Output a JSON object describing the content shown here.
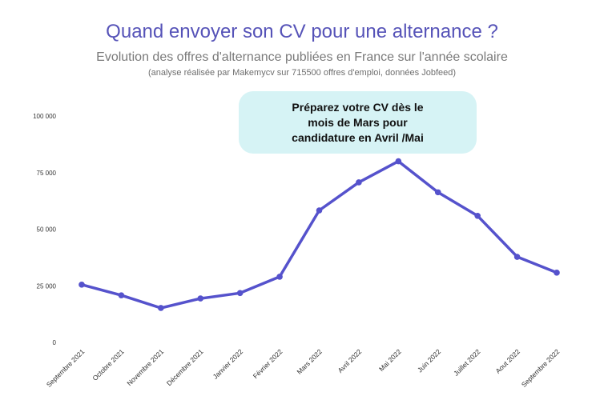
{
  "chart_data": {
    "type": "line",
    "title": "Quand envoyer son CV pour une alternance ?",
    "subtitle": "Evolution des offres d'alternance publiées en France sur l'année scolaire",
    "note": "(analyse réalisée par Makemycv sur 715500 offres d'emploi, données Jobfeed)",
    "annotation": "Préparez votre CV dès  le mois de Mars pour candidature en Avril /Mai",
    "categories": [
      "Septembre 2021",
      "Octobre 2021",
      "Novembre 2021",
      "Décembre 2021",
      "Janvier 2022",
      "Février 2022",
      "Mars 2022",
      "Avril 2022",
      "Mai 2022",
      "Juin 2022",
      "Juillet 2022",
      "Aout 2022",
      "Septembre 2022"
    ],
    "values": [
      25500,
      20800,
      15200,
      19400,
      21800,
      29000,
      58300,
      70700,
      80000,
      66300,
      55900,
      37800,
      30800
    ],
    "ylim": [
      0,
      100000
    ],
    "yticks": [
      0,
      25000,
      50000,
      75000,
      100000
    ],
    "ytick_labels": [
      "0",
      "25 000",
      "50 000",
      "75 000",
      "100 000"
    ],
    "xlabel": "",
    "ylabel": "",
    "grid": false,
    "line_color": "#5552cc",
    "callout_color": "#d6f3f5",
    "title_color": "#5653b8"
  }
}
